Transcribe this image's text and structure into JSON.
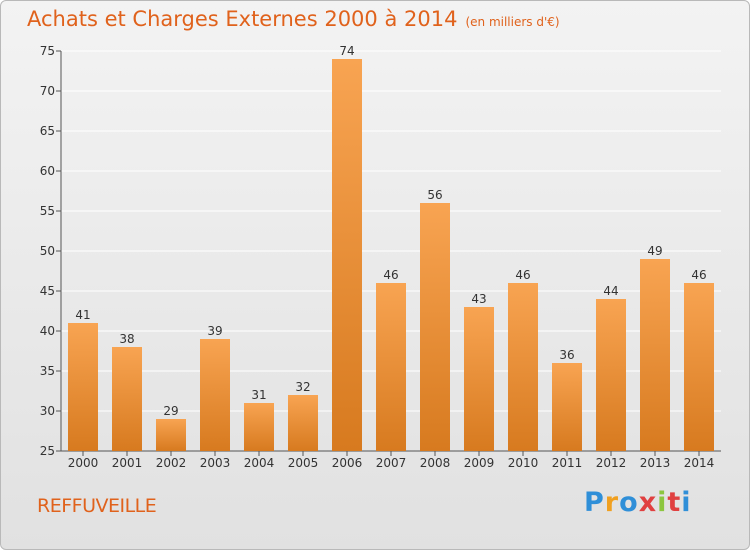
{
  "header": {
    "title": "Achats et Charges Externes 2000 à 2014",
    "unit": "(en milliers d'€)"
  },
  "commune": "REFFUVEILLE",
  "logo": {
    "letters": [
      "P",
      "r",
      "o",
      "x",
      "i",
      "t",
      "i"
    ],
    "colors": [
      "#2f8fd8",
      "#f0a020",
      "#2f8fd8",
      "#e04040",
      "#8cc63f",
      "#e04040",
      "#2f8fd8"
    ]
  },
  "colors": {
    "bar_light": "#f8a452",
    "bar_dark": "#d77a1f",
    "title": "#e0621c",
    "grid": "#ffffff"
  },
  "chart_data": {
    "type": "bar",
    "title": "Achats et Charges Externes 2000 à 2014",
    "subtitle": "(en milliers d'€)",
    "categories": [
      "2000",
      "2001",
      "2002",
      "2003",
      "2004",
      "2005",
      "2006",
      "2007",
      "2008",
      "2009",
      "2010",
      "2011",
      "2012",
      "2013",
      "2014"
    ],
    "values": [
      41,
      38,
      29,
      39,
      31,
      32,
      74,
      46,
      56,
      43,
      46,
      36,
      44,
      49,
      46
    ],
    "ylim": [
      25,
      75
    ],
    "yticks": [
      25,
      30,
      35,
      40,
      45,
      50,
      55,
      60,
      65,
      70,
      75
    ],
    "grid": true,
    "data_labels": true
  }
}
